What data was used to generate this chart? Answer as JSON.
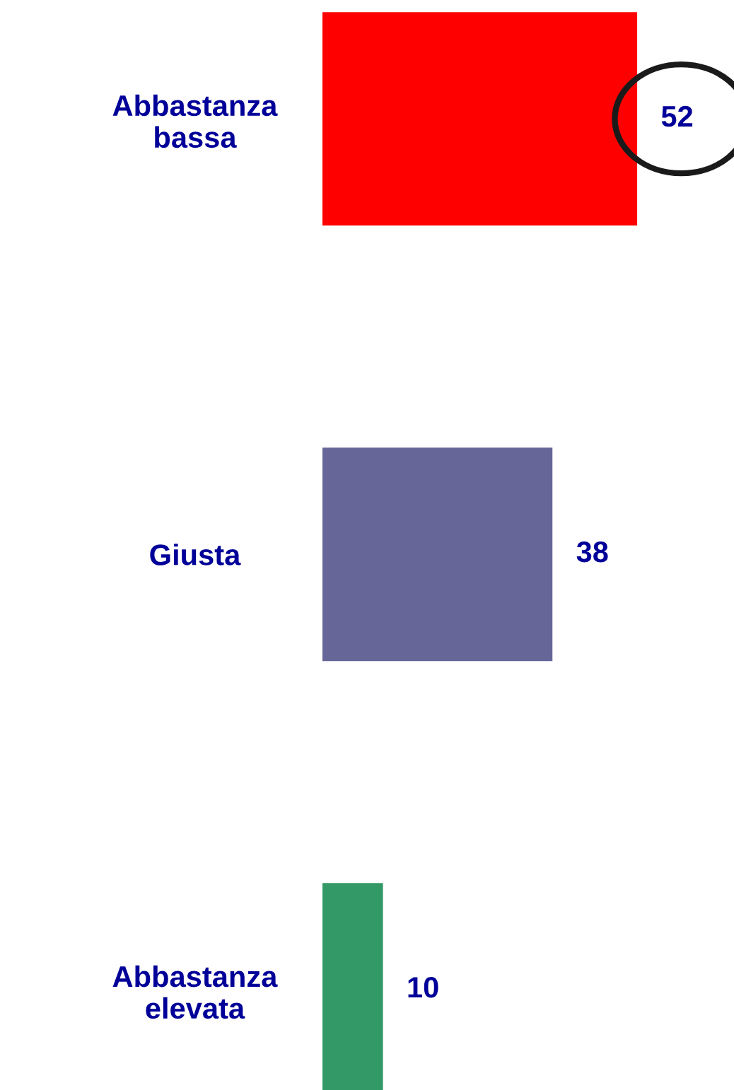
{
  "chart_data": {
    "type": "bar",
    "orientation": "horizontal",
    "categories": [
      "Abbastanza\nbassa",
      "Giusta",
      "Abbastanza\nelevata"
    ],
    "values": [
      52,
      38,
      10
    ],
    "colors": [
      "#ff0000",
      "#666699",
      "#339966"
    ],
    "data_labels": true,
    "grid": false,
    "legend": false
  }
}
